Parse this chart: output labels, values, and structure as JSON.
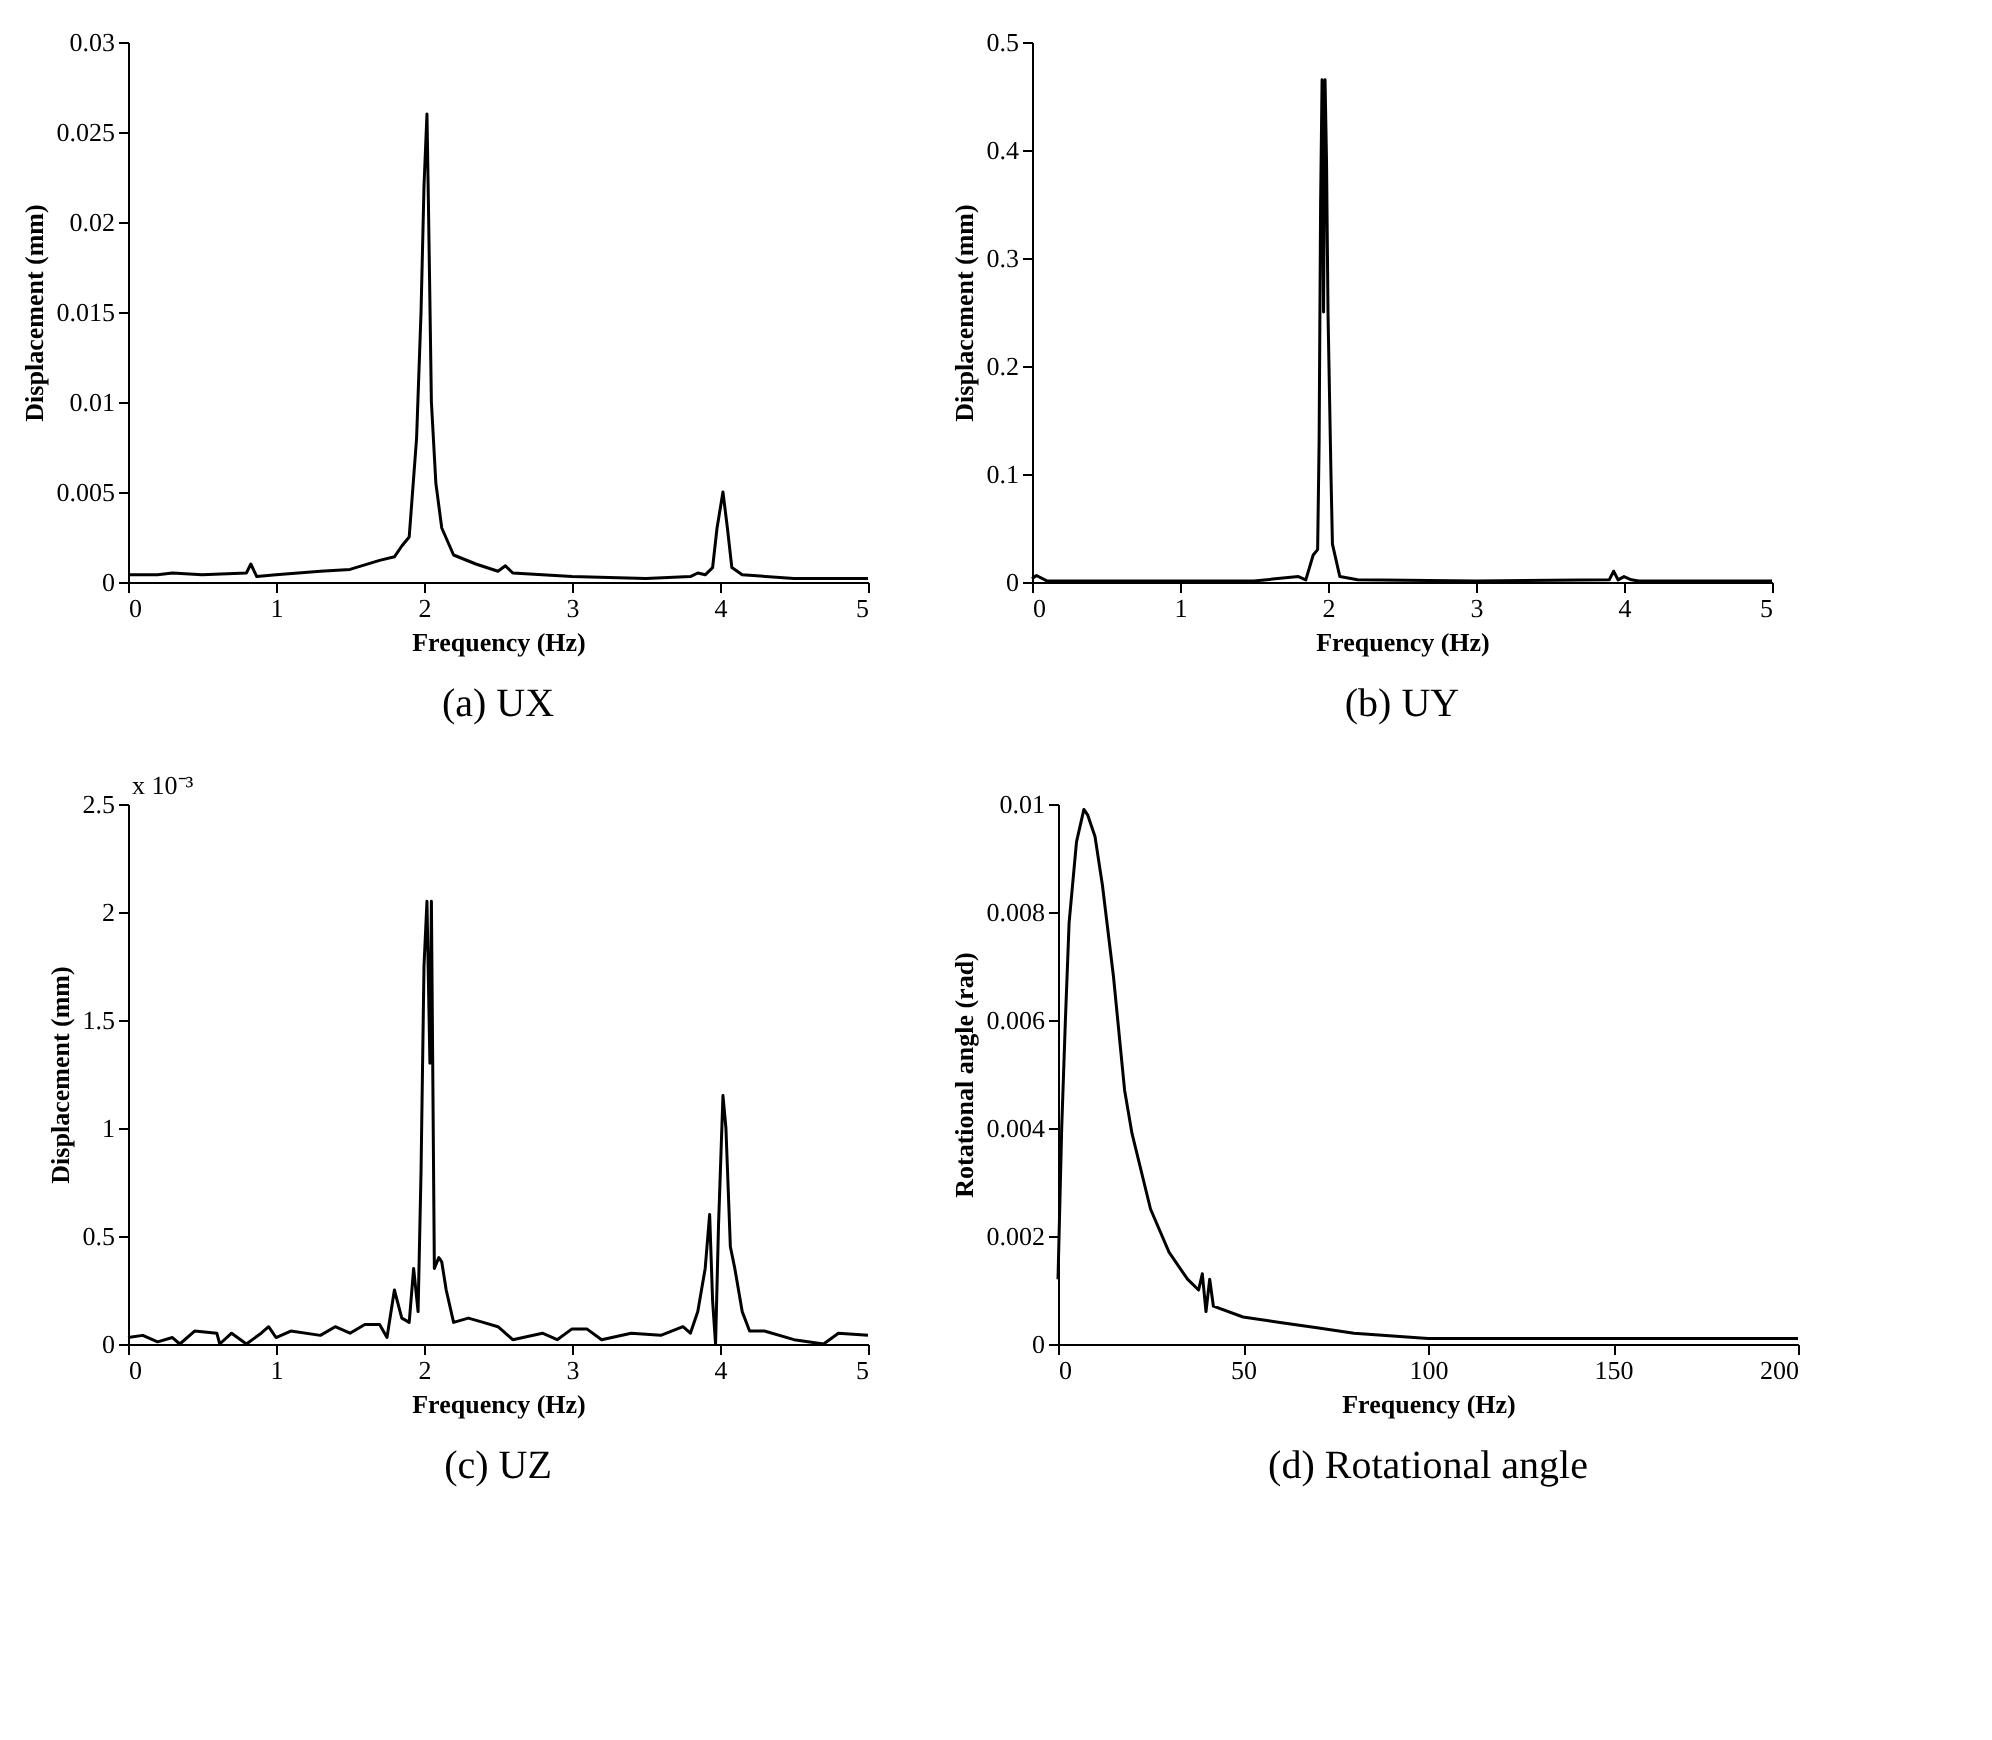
{
  "chart_data": [
    {
      "type": "line",
      "title": "(a) UX",
      "xlabel": "Frequency (Hz)",
      "ylabel": "Displacement (mm)",
      "xlim": [
        0,
        5
      ],
      "xticks": [
        0,
        1,
        2,
        3,
        4,
        5
      ],
      "ylim": [
        0,
        0.03
      ],
      "yticks": [
        0,
        0.005,
        0.01,
        0.015,
        0.02,
        0.025,
        0.03
      ],
      "grid": false,
      "series": [
        {
          "color": "#000000",
          "x": [
            0,
            0.2,
            0.3,
            0.5,
            0.8,
            0.83,
            0.87,
            1.0,
            1.3,
            1.5,
            1.7,
            1.8,
            1.85,
            1.9,
            1.95,
            1.98,
            2.0,
            2.02,
            2.03,
            2.05,
            2.08,
            2.12,
            2.2,
            2.35,
            2.5,
            2.55,
            2.6,
            3.0,
            3.5,
            3.8,
            3.85,
            3.9,
            3.95,
            3.98,
            4.02,
            4.05,
            4.08,
            4.15,
            4.5,
            5
          ],
          "values": [
            0.0004,
            0.0004,
            0.0005,
            0.0004,
            0.0005,
            0.001,
            0.0003,
            0.0004,
            0.0006,
            0.0007,
            0.0012,
            0.0014,
            0.002,
            0.0025,
            0.008,
            0.015,
            0.022,
            0.026,
            0.021,
            0.01,
            0.0055,
            0.003,
            0.0015,
            0.001,
            0.0006,
            0.0009,
            0.0005,
            0.0003,
            0.0002,
            0.0003,
            0.0005,
            0.0004,
            0.0008,
            0.003,
            0.005,
            0.003,
            0.0008,
            0.0004,
            0.0002,
            0.0002
          ]
        }
      ]
    },
    {
      "type": "line",
      "title": "(b) UY",
      "xlabel": "Frequency (Hz)",
      "ylabel": "Displacement (mm)",
      "xlim": [
        0,
        5
      ],
      "xticks": [
        0,
        1,
        2,
        3,
        4,
        5
      ],
      "ylim": [
        0,
        0.5
      ],
      "yticks": [
        0,
        0.1,
        0.2,
        0.3,
        0.4,
        0.5
      ],
      "grid": false,
      "series": [
        {
          "color": "#000000",
          "x": [
            0,
            0.03,
            0.1,
            1.0,
            1.5,
            1.8,
            1.85,
            1.9,
            1.93,
            1.94,
            1.95,
            1.96,
            1.97,
            1.98,
            1.99,
            2.0,
            2.02,
            2.03,
            2.08,
            2.2,
            3.0,
            3.9,
            3.93,
            3.96,
            4.0,
            4.05,
            4.1,
            5
          ],
          "values": [
            0.003,
            0.006,
            0.001,
            0.001,
            0.001,
            0.005,
            0.002,
            0.025,
            0.03,
            0.13,
            0.35,
            0.465,
            0.25,
            0.465,
            0.39,
            0.25,
            0.1,
            0.035,
            0.005,
            0.002,
            0.001,
            0.002,
            0.01,
            0.002,
            0.005,
            0.002,
            0.001,
            0.001
          ]
        }
      ]
    },
    {
      "type": "line",
      "title": "(c) UZ",
      "xlabel": "Frequency (Hz)",
      "ylabel": "Displacement (mm)",
      "annotations": [
        "x 10⁻³"
      ],
      "xlim": [
        0,
        5
      ],
      "xticks": [
        0,
        1,
        2,
        3,
        4,
        5
      ],
      "ylim": [
        0,
        2.5
      ],
      "yticks": [
        0,
        0.5,
        1,
        1.5,
        2,
        2.5
      ],
      "grid": false,
      "series": [
        {
          "color": "#000000",
          "x": [
            0,
            0.1,
            0.2,
            0.3,
            0.35,
            0.45,
            0.6,
            0.62,
            0.7,
            0.8,
            0.9,
            0.95,
            1.0,
            1.1,
            1.3,
            1.4,
            1.5,
            1.6,
            1.7,
            1.75,
            1.8,
            1.85,
            1.9,
            1.93,
            1.96,
            1.98,
            2.0,
            2.02,
            2.04,
            2.05,
            2.07,
            2.1,
            2.12,
            2.15,
            2.2,
            2.3,
            2.4,
            2.5,
            2.6,
            2.8,
            2.9,
            3.0,
            3.1,
            3.2,
            3.4,
            3.6,
            3.75,
            3.8,
            3.85,
            3.9,
            3.93,
            3.95,
            3.97,
            3.99,
            4.02,
            4.04,
            4.07,
            4.1,
            4.15,
            4.2,
            4.3,
            4.5,
            4.7,
            4.8,
            5
          ],
          "values": [
            0.03,
            0.04,
            0.01,
            0.03,
            0.0,
            0.06,
            0.05,
            0.0,
            0.05,
            0.0,
            0.05,
            0.08,
            0.03,
            0.06,
            0.04,
            0.08,
            0.05,
            0.09,
            0.09,
            0.03,
            0.25,
            0.12,
            0.1,
            0.35,
            0.15,
            0.8,
            1.75,
            2.05,
            1.3,
            2.05,
            0.35,
            0.4,
            0.38,
            0.25,
            0.1,
            0.12,
            0.1,
            0.08,
            0.02,
            0.05,
            0.02,
            0.07,
            0.07,
            0.02,
            0.05,
            0.04,
            0.08,
            0.05,
            0.15,
            0.35,
            0.6,
            0.2,
            0.0,
            0.55,
            1.15,
            1.0,
            0.45,
            0.35,
            0.15,
            0.06,
            0.06,
            0.02,
            0.0,
            0.05,
            0.04
          ]
        }
      ]
    },
    {
      "type": "line",
      "title": "(d) Rotational angle",
      "xlabel": "Frequency (Hz)",
      "ylabel": "Rotational angle (rad)",
      "xlim": [
        0,
        200
      ],
      "xticks": [
        0,
        50,
        100,
        150,
        200
      ],
      "ylim": [
        0,
        0.01
      ],
      "yticks": [
        0,
        0.002,
        0.004,
        0.006,
        0.008,
        0.01
      ],
      "grid": false,
      "series": [
        {
          "color": "#000000",
          "x": [
            0,
            1,
            2,
            3,
            5,
            7,
            8,
            10,
            12,
            15,
            18,
            20,
            25,
            30,
            35,
            38,
            39,
            40,
            41,
            42,
            50,
            60,
            70,
            80,
            100,
            120,
            150,
            200
          ],
          "values": [
            0.0012,
            0.004,
            0.006,
            0.0078,
            0.0093,
            0.0099,
            0.0098,
            0.0094,
            0.0085,
            0.0068,
            0.0047,
            0.0039,
            0.0025,
            0.0017,
            0.0012,
            0.001,
            0.0013,
            0.0006,
            0.0012,
            0.0007,
            0.0005,
            0.0004,
            0.0003,
            0.0002,
            0.0001,
            0.0001,
            0.0001,
            0.0001
          ]
        }
      ]
    }
  ]
}
